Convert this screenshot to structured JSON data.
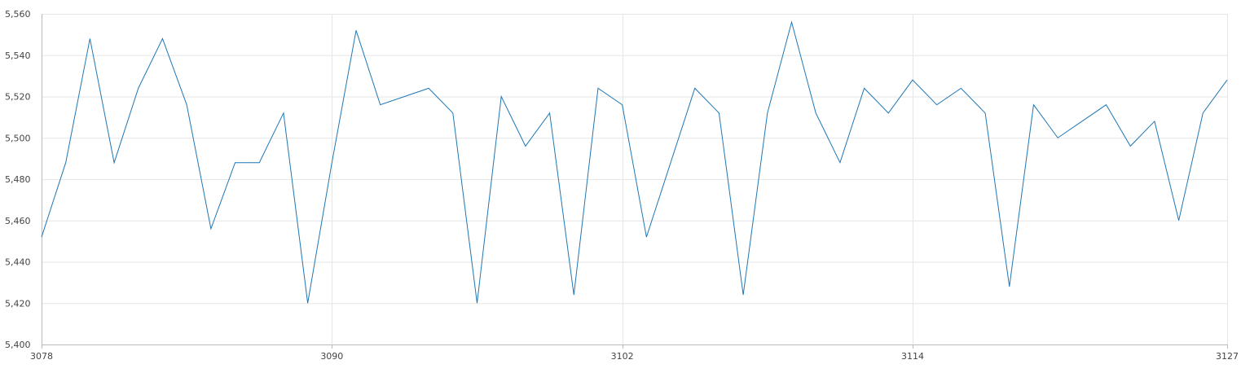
{
  "colors": {
    "line": "#1f77b4",
    "grid": "#e6e6e6",
    "axis": "#bbbbbb",
    "text": "#444444",
    "background": "#ffffff"
  },
  "chart_data": {
    "type": "line",
    "title": "",
    "xlabel": "",
    "ylabel": "",
    "xlim": [
      3078,
      3127
    ],
    "ylim": [
      5400,
      5560
    ],
    "grid": true,
    "x_ticks": [
      3078,
      3090,
      3102,
      3114,
      3127
    ],
    "x_tick_labels": [
      "3078",
      "3090",
      "3102",
      "3114",
      "3127"
    ],
    "y_ticks": [
      5400,
      5420,
      5440,
      5460,
      5480,
      5500,
      5520,
      5540,
      5560
    ],
    "y_tick_labels": [
      "5,400",
      "5,420",
      "5,440",
      "5,460",
      "5,480",
      "5,500",
      "5,520",
      "5,540",
      "5,560"
    ],
    "series": [
      {
        "x": [
          3078,
          3079,
          3080,
          3081,
          3082,
          3083,
          3084,
          3085,
          3086,
          3087,
          3088,
          3089,
          3090,
          3091,
          3092,
          3093,
          3094,
          3095,
          3096,
          3097,
          3098,
          3099,
          3100,
          3101,
          3102,
          3103,
          3104,
          3105,
          3106,
          3107,
          3108,
          3109,
          3110,
          3111,
          3112,
          3113,
          3114,
          3115,
          3116,
          3117,
          3118,
          3119,
          3120,
          3121,
          3122,
          3123,
          3124,
          3125,
          3126,
          3127
        ],
        "values": [
          5452,
          5488,
          5548,
          5488,
          5524,
          5548,
          5516,
          5456,
          5488,
          5488,
          5512,
          5420,
          5488,
          5552,
          5516,
          5520,
          5524,
          5512,
          5420,
          5520,
          5496,
          5512,
          5424,
          5524,
          5516,
          5452,
          5488,
          5524,
          5512,
          5424,
          5512,
          5556,
          5512,
          5488,
          5524,
          5512,
          5528,
          5516,
          5524,
          5512,
          5428,
          5516,
          5500,
          5508,
          5516,
          5496,
          5508,
          5460,
          5512,
          5528
        ]
      }
    ]
  }
}
